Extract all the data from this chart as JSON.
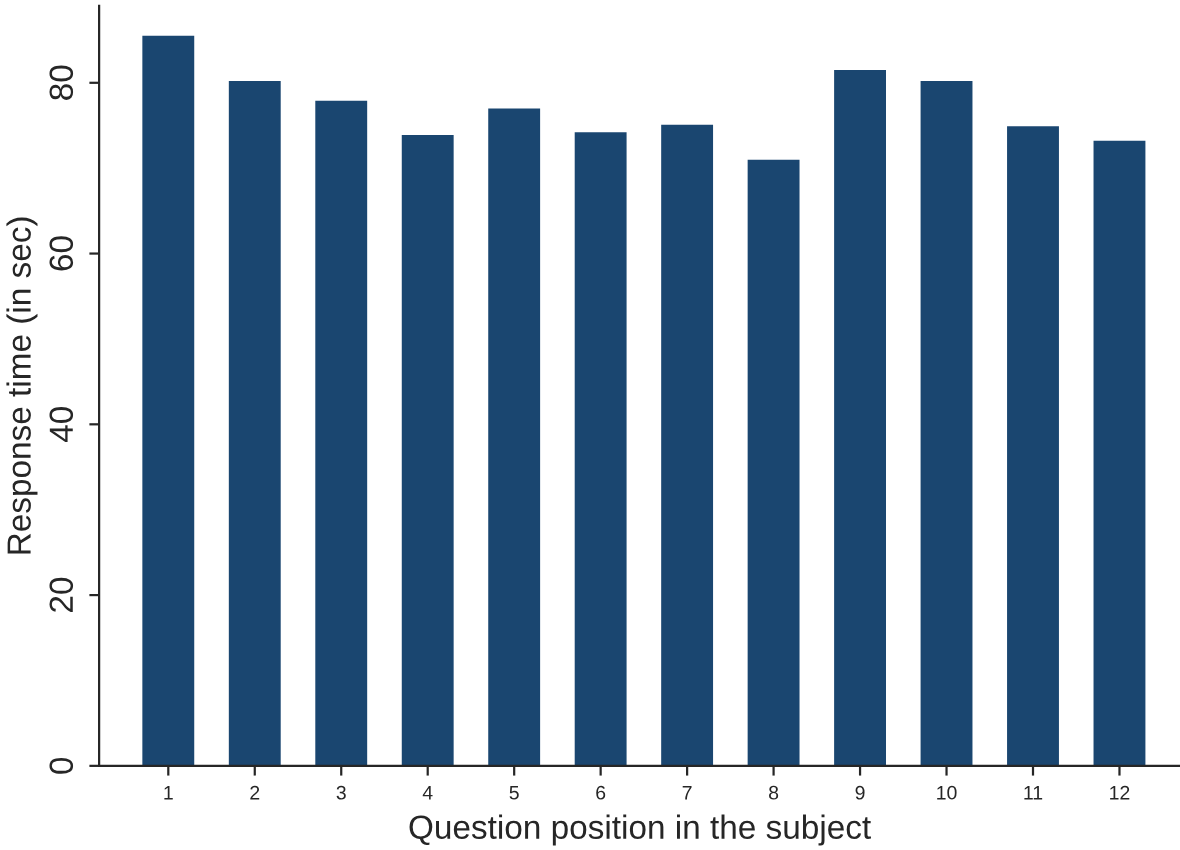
{
  "chart_data": {
    "type": "bar",
    "xlabel": "Question position in the subject",
    "ylabel": "Response time (in sec)",
    "categories": [
      "1",
      "2",
      "3",
      "4",
      "5",
      "6",
      "7",
      "8",
      "9",
      "10",
      "11",
      "12"
    ],
    "values": [
      85.5,
      80.2,
      77.9,
      73.9,
      77.0,
      74.2,
      75.1,
      71.0,
      81.5,
      80.2,
      74.9,
      73.2
    ],
    "color": "#1a4670",
    "ylim": [
      0,
      89
    ],
    "yticks": [
      0,
      20,
      40,
      60,
      80
    ],
    "grid": false,
    "legend": false
  }
}
